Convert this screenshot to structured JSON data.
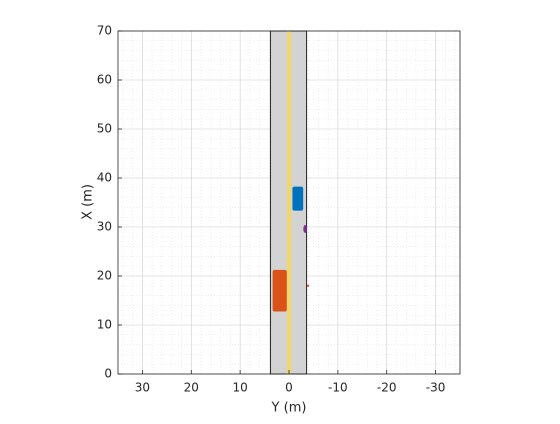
{
  "chart_data": {
    "type": "scenario",
    "xlabel": "Y (m)",
    "ylabel": "X (m)",
    "xlim": [
      35,
      -35
    ],
    "ylim": [
      0,
      70
    ],
    "xticks": [
      30,
      20,
      10,
      0,
      -10,
      -20,
      -30
    ],
    "yticks": [
      0,
      10,
      20,
      30,
      40,
      50,
      60,
      70
    ],
    "grid": true,
    "minor_grid_step": 2,
    "road": {
      "left": 3.8,
      "right": -3.6,
      "color": "#d3d3d3",
      "marking": 0,
      "marking_color": "#f2d766"
    },
    "vehicles": [
      {
        "x": 35.8,
        "y": -1.8,
        "length": 4.7,
        "width": 2.0,
        "color": "#0072bd"
      },
      {
        "x": 17.0,
        "y": 1.9,
        "length": 8.3,
        "width": 2.7,
        "color": "#d95319"
      }
    ],
    "pedestrians": [
      {
        "x": 29.6,
        "y": -3.3,
        "color": "#7e2f8e"
      }
    ],
    "points": [
      {
        "x": 18.0,
        "y": -3.9,
        "color": "#d95319"
      }
    ]
  }
}
